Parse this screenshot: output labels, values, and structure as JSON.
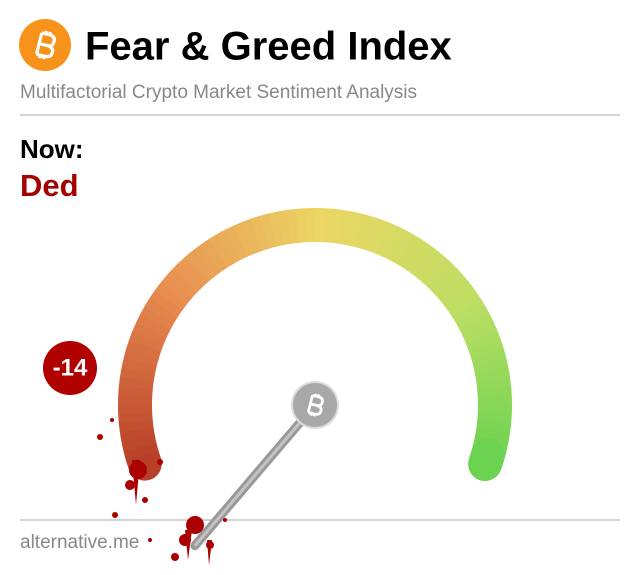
{
  "chart_data": {
    "type": "gauge",
    "title": "Fear & Greed Index",
    "subtitle": "Multifactorial Crypto Market Sentiment Analysis",
    "label": "Now:",
    "classification": "Ded",
    "value": -14,
    "ylim": [
      0,
      100
    ],
    "footer": "alternative.me"
  }
}
